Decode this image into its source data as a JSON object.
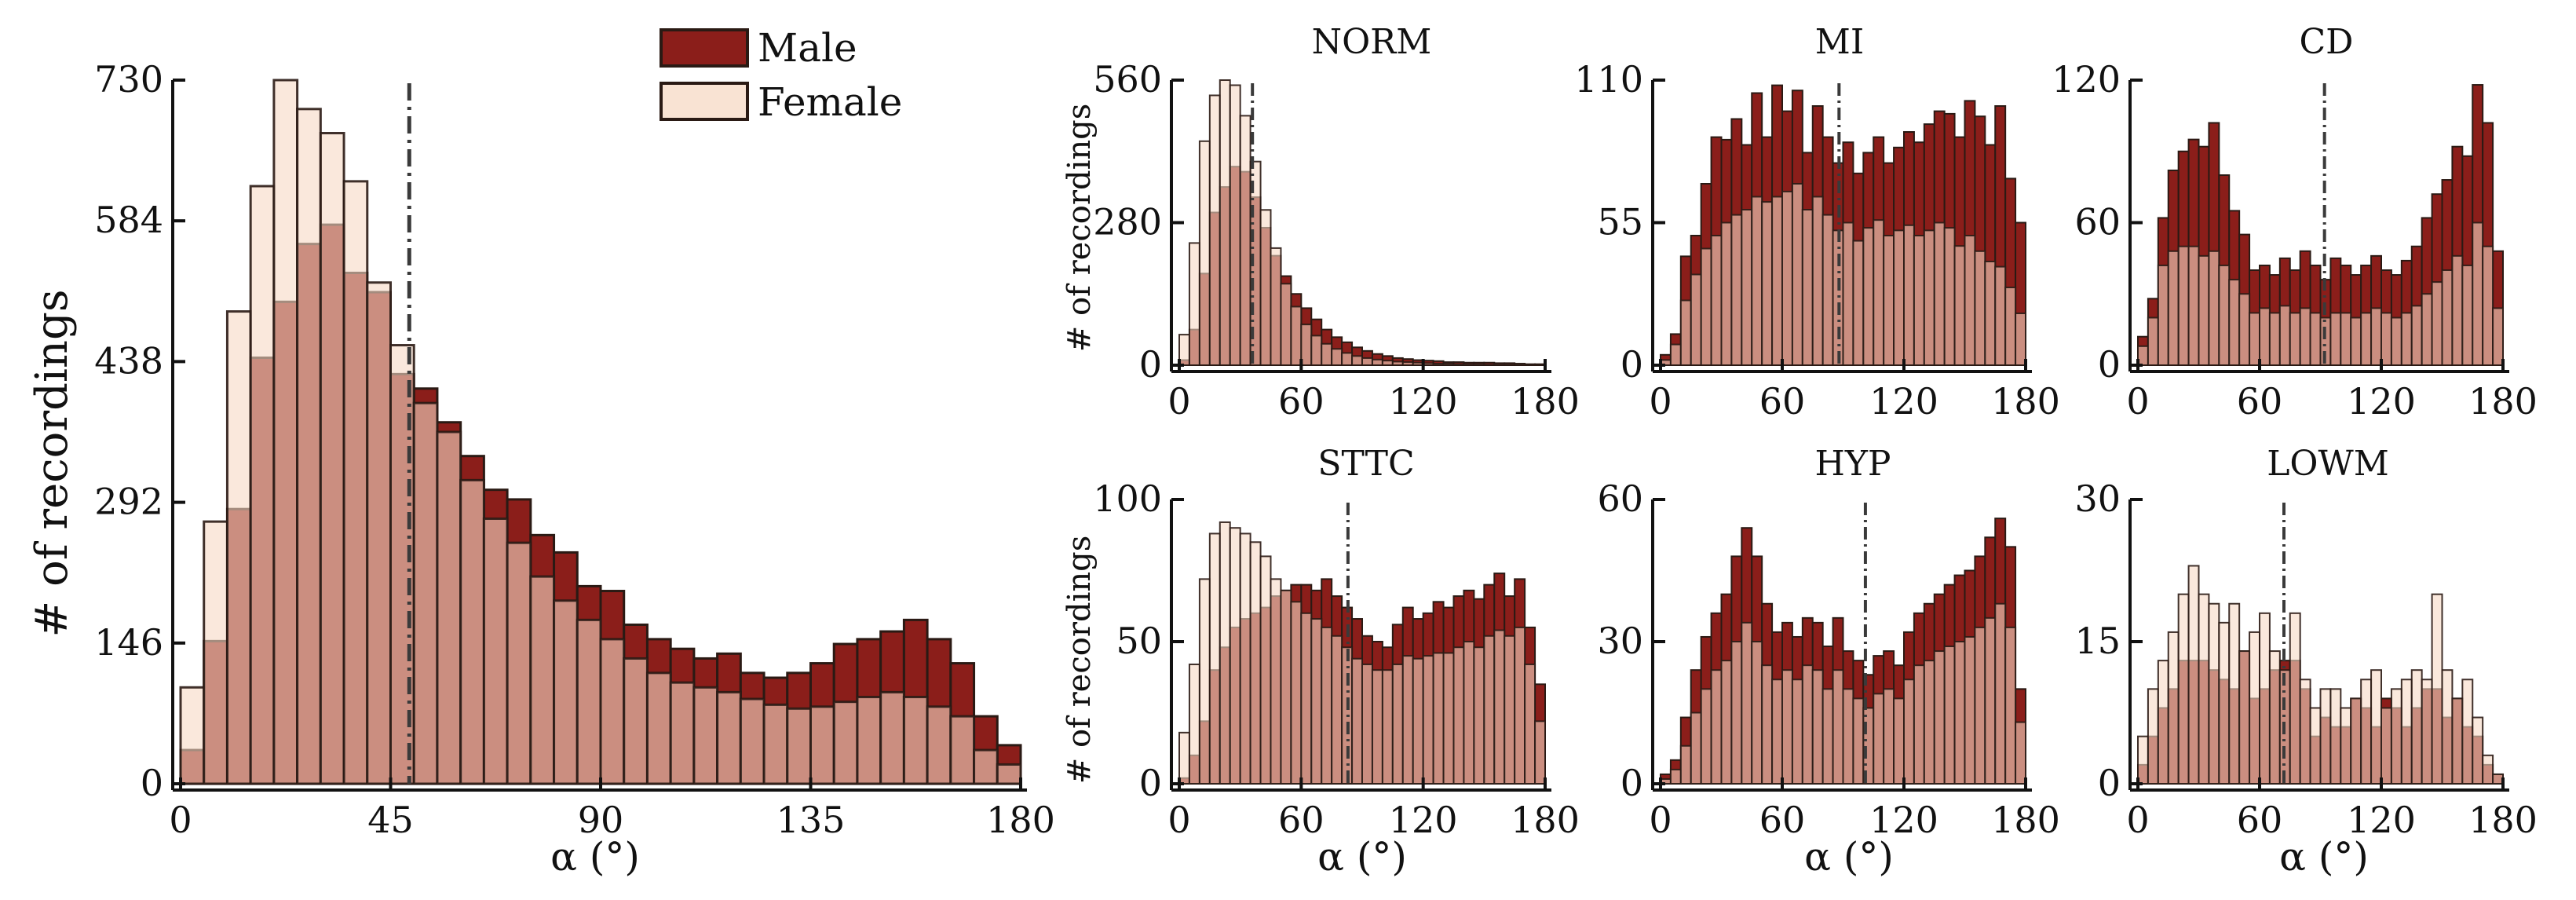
{
  "colors": {
    "male_fill": "#8b1e1a",
    "female_overlay": "#f6d9c4",
    "female_alpha": 0.6,
    "edge": "#2a1a14",
    "median_line": "#3a3a3a"
  },
  "legend": {
    "male": "Male",
    "female": "Female"
  },
  "chart_data": [
    {
      "id": "ALL",
      "type": "bar",
      "stacking": "overlay",
      "title": "",
      "xlabel": "α (°)",
      "ylabel": "# of recordings",
      "xlim": [
        0,
        180
      ],
      "ylim": [
        0,
        730
      ],
      "xticks": [
        0,
        45,
        90,
        135,
        180
      ],
      "yticks": [
        0,
        146,
        292,
        438,
        584,
        730
      ],
      "bin_width": 5,
      "median": 49,
      "male": [
        35,
        148,
        285,
        442,
        500,
        560,
        580,
        530,
        510,
        425,
        410,
        375,
        340,
        305,
        295,
        258,
        240,
        205,
        200,
        165,
        150,
        140,
        130,
        135,
        115,
        110,
        115,
        125,
        145,
        150,
        158,
        170,
        150,
        125,
        70,
        40
      ],
      "female": [
        100,
        272,
        490,
        620,
        730,
        700,
        675,
        625,
        520,
        455,
        395,
        365,
        315,
        275,
        250,
        215,
        190,
        170,
        150,
        130,
        115,
        105,
        100,
        95,
        88,
        82,
        78,
        80,
        85,
        90,
        95,
        90,
        80,
        70,
        35,
        20
      ]
    },
    {
      "id": "NORM",
      "type": "bar",
      "stacking": "overlay",
      "title": "NORM",
      "xlabel": "",
      "ylabel": "# of recordings",
      "xlim": [
        0,
        180
      ],
      "ylim": [
        0,
        560
      ],
      "xticks": [
        0,
        60,
        120,
        180
      ],
      "yticks": [
        0,
        280,
        560
      ],
      "bin_width": 5,
      "median": 36,
      "male": [
        10,
        70,
        180,
        300,
        350,
        390,
        380,
        330,
        270,
        215,
        175,
        140,
        112,
        90,
        70,
        55,
        45,
        35,
        28,
        22,
        18,
        14,
        12,
        10,
        9,
        8,
        6,
        6,
        5,
        5,
        5,
        4,
        4,
        3,
        2,
        2
      ],
      "female": [
        60,
        240,
        440,
        530,
        560,
        550,
        490,
        400,
        305,
        230,
        160,
        115,
        80,
        58,
        42,
        32,
        24,
        18,
        14,
        11,
        9,
        7,
        6,
        5,
        4,
        3,
        3,
        2,
        2,
        2,
        1,
        1,
        1,
        1,
        0,
        0
      ]
    },
    {
      "id": "MI",
      "type": "bar",
      "stacking": "overlay",
      "title": "MI",
      "xlabel": "",
      "ylabel": "",
      "xlim": [
        0,
        180
      ],
      "ylim": [
        0,
        110
      ],
      "xticks": [
        0,
        60,
        120,
        180
      ],
      "yticks": [
        0,
        55,
        110
      ],
      "bin_width": 5,
      "median": 88,
      "male": [
        4,
        12,
        42,
        50,
        70,
        88,
        87,
        95,
        85,
        105,
        88,
        108,
        98,
        106,
        82,
        100,
        88,
        78,
        86,
        74,
        82,
        88,
        78,
        84,
        90,
        86,
        93,
        98,
        97,
        88,
        102,
        96,
        85,
        100,
        72,
        55
      ],
      "female": [
        2,
        8,
        25,
        35,
        45,
        50,
        55,
        58,
        60,
        65,
        63,
        65,
        67,
        70,
        60,
        65,
        58,
        52,
        55,
        48,
        53,
        56,
        50,
        52,
        54,
        50,
        52,
        55,
        53,
        46,
        50,
        44,
        40,
        38,
        30,
        20
      ]
    },
    {
      "id": "CD",
      "type": "bar",
      "stacking": "overlay",
      "title": "CD",
      "xlabel": "",
      "ylabel": "",
      "xlim": [
        0,
        180
      ],
      "ylim": [
        0,
        120
      ],
      "xticks": [
        0,
        60,
        120,
        180
      ],
      "yticks": [
        0,
        60,
        120
      ],
      "bin_width": 5,
      "median": 92,
      "male": [
        12,
        28,
        62,
        82,
        90,
        95,
        92,
        102,
        80,
        65,
        55,
        40,
        42,
        38,
        45,
        40,
        48,
        42,
        36,
        45,
        42,
        38,
        42,
        46,
        40,
        38,
        44,
        50,
        62,
        72,
        78,
        92,
        88,
        118,
        102,
        48
      ],
      "female": [
        8,
        20,
        42,
        48,
        50,
        50,
        46,
        48,
        42,
        36,
        30,
        22,
        24,
        22,
        25,
        22,
        24,
        22,
        20,
        22,
        22,
        20,
        22,
        24,
        22,
        20,
        22,
        25,
        30,
        35,
        40,
        46,
        42,
        60,
        50,
        24
      ]
    },
    {
      "id": "STTC",
      "type": "bar",
      "stacking": "overlay",
      "title": "STTC",
      "xlabel": "α (°)",
      "ylabel": "# of recordings",
      "xlim": [
        0,
        180
      ],
      "ylim": [
        0,
        100
      ],
      "xticks": [
        0,
        60,
        120,
        180
      ],
      "yticks": [
        0,
        50,
        100
      ],
      "bin_width": 5,
      "median": 83,
      "male": [
        2,
        10,
        22,
        40,
        48,
        55,
        58,
        60,
        62,
        66,
        68,
        70,
        70,
        68,
        72,
        66,
        62,
        58,
        52,
        50,
        48,
        56,
        62,
        58,
        60,
        64,
        62,
        66,
        68,
        65,
        70,
        74,
        66,
        72,
        55,
        35
      ],
      "female": [
        18,
        42,
        72,
        88,
        92,
        90,
        88,
        85,
        80,
        72,
        68,
        64,
        60,
        58,
        55,
        52,
        48,
        44,
        42,
        40,
        40,
        42,
        45,
        44,
        45,
        46,
        46,
        48,
        50,
        48,
        52,
        54,
        52,
        55,
        42,
        22
      ]
    },
    {
      "id": "HYP",
      "type": "bar",
      "stacking": "overlay",
      "title": "HYP",
      "xlabel": "α (°)",
      "ylabel": "",
      "xlim": [
        0,
        180
      ],
      "ylim": [
        0,
        60
      ],
      "xticks": [
        0,
        60,
        120,
        180
      ],
      "yticks": [
        0,
        30,
        60
      ],
      "bin_width": 5,
      "median": 101,
      "male": [
        2,
        5,
        14,
        24,
        31,
        36,
        40,
        48,
        54,
        48,
        38,
        32,
        34,
        31,
        35,
        34,
        29,
        35,
        28,
        26,
        23,
        27,
        28,
        25,
        32,
        36,
        38,
        40,
        42,
        44,
        45,
        48,
        52,
        56,
        50,
        20
      ],
      "female": [
        1,
        3,
        8,
        15,
        20,
        24,
        26,
        30,
        34,
        30,
        25,
        22,
        24,
        22,
        25,
        24,
        20,
        24,
        20,
        18,
        16,
        19,
        20,
        18,
        22,
        25,
        26,
        28,
        29,
        30,
        31,
        33,
        35,
        38,
        33,
        13
      ]
    },
    {
      "id": "LOWM",
      "type": "bar",
      "stacking": "overlay",
      "title": "LOWM",
      "xlabel": "α (°)",
      "ylabel": "",
      "xlim": [
        0,
        180
      ],
      "ylim": [
        0,
        30
      ],
      "xticks": [
        0,
        60,
        120,
        180
      ],
      "yticks": [
        0,
        15,
        30
      ],
      "bin_width": 5,
      "median": 72,
      "male": [
        2,
        5,
        8,
        10,
        13,
        13,
        13,
        12,
        11,
        10,
        14,
        9,
        10,
        12,
        13,
        13,
        10,
        5,
        7,
        6,
        6,
        9,
        8,
        6,
        9,
        8,
        6,
        8,
        10,
        10,
        7,
        9,
        6,
        5,
        2,
        1
      ],
      "female": [
        5,
        10,
        13,
        16,
        20,
        23,
        20,
        19,
        17,
        19,
        14,
        16,
        18,
        14,
        12,
        18,
        11,
        8,
        10,
        10,
        8,
        9,
        11,
        12,
        8,
        10,
        11,
        12,
        11,
        20,
        12,
        9,
        11,
        7,
        3,
        1
      ]
    }
  ]
}
